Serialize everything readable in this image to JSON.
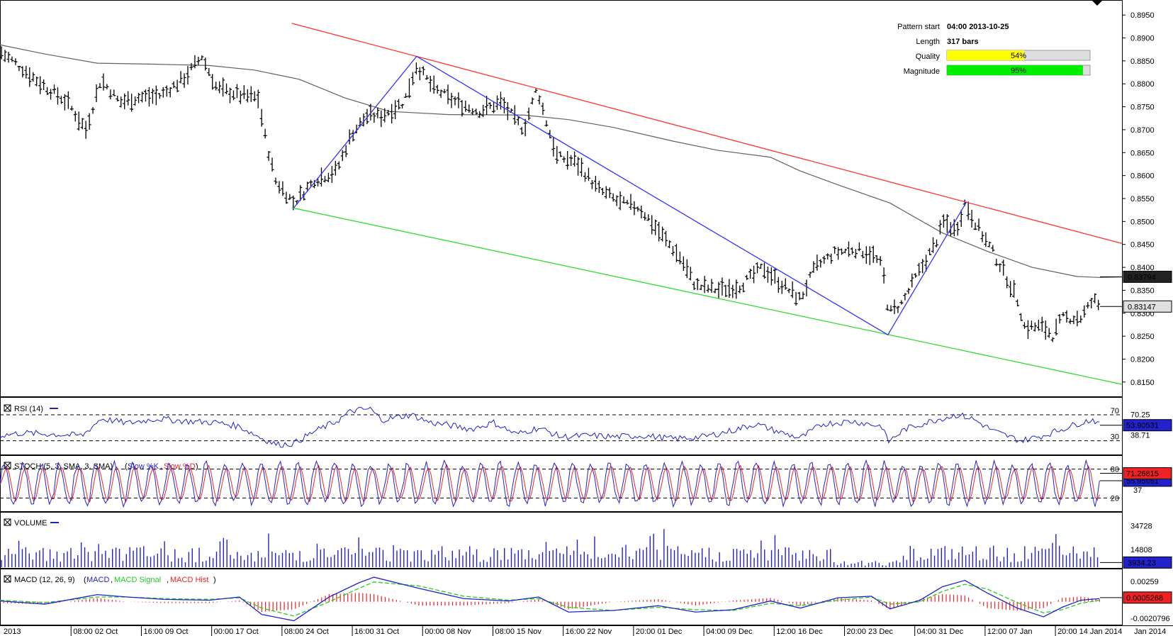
{
  "info_box": {
    "pattern_start_label": "Pattern start",
    "pattern_start_value": "04:00 2013-10-25",
    "length_label": "Length",
    "length_value": "317 bars",
    "quality_label": "Quality",
    "quality_value": "54%",
    "quality_level": 0.54,
    "magnitude_label": "Magnitude",
    "magnitude_value": "95%",
    "magnitude_level": 0.95
  },
  "colors": {
    "resistance": "#ff3333",
    "support": "#33dd33",
    "pattern": "#3333ff",
    "moving_average": "#606060",
    "quality_bar": "#ffff00",
    "magnitude_bar": "#00ee00",
    "rsi": "#2222cc",
    "stoch_k": "#2222cc",
    "stoch_d": "#ee2222",
    "volume": "#2222cc",
    "macd": "#2222cc",
    "macd_signal": "#22cc22",
    "macd_hist": "#ee2222",
    "last_price_bg": "#333333",
    "ma_price_bg": "#222222"
  },
  "chart_data": [
    {
      "type": "ohlc",
      "ylim": [
        0.8125,
        0.8975
      ],
      "y_ticks": [
        "0.8950",
        "0.8900",
        "0.8850",
        "0.8800",
        "0.8750",
        "0.8700",
        "0.8650",
        "0.8600",
        "0.8550",
        "0.8500",
        "0.8450",
        "0.8400",
        "0.8350",
        "0.8300",
        "0.8250",
        "0.8200",
        "0.8150"
      ],
      "x_ticks": [
        "2013",
        "08:00 02 Oct",
        "16:00 09 Oct",
        "00:00 17 Oct",
        "08:00 24 Oct",
        "16:00 31 Oct",
        "00:00 08 Nov",
        "08:00 15 Nov",
        "16:00 22 Nov",
        "20:00 01 Dec",
        "04:00 09 Dec",
        "12:00 16 Dec",
        "20:00 23 Dec",
        "04:00 31 Dec",
        "12:00 07 Jan",
        "20:00 14 Jan 2014",
        "Jan 2014"
      ],
      "price_path": [
        [
          0,
          0.887
        ],
        [
          25,
          0.884
        ],
        [
          55,
          0.88
        ],
        [
          90,
          0.876
        ],
        [
          115,
          0.87
        ],
        [
          135,
          0.881
        ],
        [
          160,
          0.876
        ],
        [
          185,
          0.877
        ],
        [
          215,
          0.8775
        ],
        [
          245,
          0.881
        ],
        [
          270,
          0.886
        ],
        [
          290,
          0.879
        ],
        [
          320,
          0.8775
        ],
        [
          345,
          0.877
        ],
        [
          355,
          0.868
        ],
        [
          368,
          0.859
        ],
        [
          393,
          0.854
        ],
        [
          420,
          0.859
        ],
        [
          450,
          0.861
        ],
        [
          470,
          0.869
        ],
        [
          490,
          0.873
        ],
        [
          510,
          0.873
        ],
        [
          540,
          0.876
        ],
        [
          557,
          0.884
        ],
        [
          580,
          0.879
        ],
        [
          610,
          0.876
        ],
        [
          640,
          0.874
        ],
        [
          670,
          0.876
        ],
        [
          700,
          0.87
        ],
        [
          718,
          0.879
        ],
        [
          730,
          0.872
        ],
        [
          745,
          0.864
        ],
        [
          770,
          0.863
        ],
        [
          800,
          0.857
        ],
        [
          830,
          0.854
        ],
        [
          855,
          0.853
        ],
        [
          880,
          0.848
        ],
        [
          910,
          0.842
        ],
        [
          930,
          0.836
        ],
        [
          960,
          0.835
        ],
        [
          990,
          0.836
        ],
        [
          1020,
          0.84
        ],
        [
          1040,
          0.837
        ],
        [
          1070,
          0.833
        ],
        [
          1090,
          0.84
        ],
        [
          1115,
          0.843
        ],
        [
          1140,
          0.844
        ],
        [
          1165,
          0.843
        ],
        [
          1180,
          0.84
        ],
        [
          1188,
          0.83
        ],
        [
          1205,
          0.832
        ],
        [
          1225,
          0.838
        ],
        [
          1250,
          0.845
        ],
        [
          1262,
          0.85
        ],
        [
          1278,
          0.848
        ],
        [
          1290,
          0.854
        ],
        [
          1310,
          0.848
        ],
        [
          1325,
          0.844
        ],
        [
          1345,
          0.838
        ],
        [
          1360,
          0.833
        ],
        [
          1370,
          0.827
        ],
        [
          1395,
          0.827
        ],
        [
          1408,
          0.825
        ],
        [
          1420,
          0.829
        ],
        [
          1445,
          0.829
        ],
        [
          1462,
          0.833
        ],
        [
          1470,
          0.8315
        ]
      ],
      "moving_average": [
        [
          0,
          0.8885
        ],
        [
          60,
          0.8865
        ],
        [
          130,
          0.8845
        ],
        [
          200,
          0.8843
        ],
        [
          280,
          0.884
        ],
        [
          340,
          0.883
        ],
        [
          400,
          0.881
        ],
        [
          460,
          0.877
        ],
        [
          520,
          0.874
        ],
        [
          600,
          0.8733
        ],
        [
          700,
          0.8732
        ],
        [
          760,
          0.8722
        ],
        [
          820,
          0.8705
        ],
        [
          900,
          0.8675
        ],
        [
          960,
          0.8655
        ],
        [
          1030,
          0.864
        ],
        [
          1070,
          0.861
        ],
        [
          1120,
          0.858
        ],
        [
          1190,
          0.854
        ],
        [
          1260,
          0.8475
        ],
        [
          1320,
          0.8435
        ],
        [
          1380,
          0.84
        ],
        [
          1440,
          0.838
        ],
        [
          1470,
          0.8378
        ],
        [
          1500,
          0.8379
        ]
      ],
      "resistance_line": [
        [
          390,
          0.8932
        ],
        [
          1500,
          0.8452
        ]
      ],
      "support_line": [
        [
          390,
          0.853
        ],
        [
          1500,
          0.8145
        ]
      ],
      "pattern_lines": [
        [
          393,
          0.853
        ],
        [
          557,
          0.886
        ],
        [
          1187,
          0.8253
        ],
        [
          1292,
          0.8542
        ]
      ],
      "last_price_label": "0.83147",
      "last_price": 0.83147,
      "ma_price_label": "0.83794",
      "ma_price": 0.83794
    },
    {
      "type": "line",
      "title": "RSI (14)",
      "ylim": [
        10,
        95
      ],
      "levels": [
        70,
        30
      ],
      "level_labels": [
        "70",
        "30"
      ],
      "extra_ticks": [
        "70.25",
        "38.71"
      ],
      "extra_tick_values": [
        70.25,
        38.71
      ],
      "last_value": 53.90531,
      "last_label": "53.90531",
      "path": [
        [
          0,
          38
        ],
        [
          30,
          42
        ],
        [
          70,
          40
        ],
        [
          110,
          38
        ],
        [
          135,
          64
        ],
        [
          170,
          57
        ],
        [
          210,
          64
        ],
        [
          250,
          60
        ],
        [
          290,
          58
        ],
        [
          320,
          52
        ],
        [
          350,
          34
        ],
        [
          370,
          24
        ],
        [
          393,
          26
        ],
        [
          420,
          44
        ],
        [
          450,
          60
        ],
        [
          470,
          76
        ],
        [
          495,
          79
        ],
        [
          510,
          62
        ],
        [
          550,
          70
        ],
        [
          575,
          58
        ],
        [
          600,
          54
        ],
        [
          630,
          48
        ],
        [
          660,
          58
        ],
        [
          690,
          40
        ],
        [
          720,
          50
        ],
        [
          750,
          36
        ],
        [
          790,
          38
        ],
        [
          820,
          36
        ],
        [
          860,
          38
        ],
        [
          900,
          33
        ],
        [
          940,
          36
        ],
        [
          980,
          46
        ],
        [
          1010,
          56
        ],
        [
          1040,
          44
        ],
        [
          1070,
          34
        ],
        [
          1100,
          56
        ],
        [
          1140,
          60
        ],
        [
          1180,
          52
        ],
        [
          1187,
          28
        ],
        [
          1210,
          48
        ],
        [
          1250,
          62
        ],
        [
          1280,
          70
        ],
        [
          1300,
          64
        ],
        [
          1330,
          44
        ],
        [
          1365,
          30
        ],
        [
          1395,
          38
        ],
        [
          1420,
          48
        ],
        [
          1445,
          58
        ],
        [
          1462,
          63
        ],
        [
          1470,
          54
        ]
      ]
    },
    {
      "type": "line",
      "title": "STOCH (5, 3, SMA, 3, SMA)",
      "series_names": [
        "Slow %K",
        "Slow %D"
      ],
      "ylim": [
        0,
        100
      ],
      "levels": [
        80,
        20
      ],
      "level_labels": [
        "80",
        "20"
      ],
      "extra_ticks": [
        "37"
      ],
      "extra_tick_values": [
        37
      ],
      "last_k": 71.26815,
      "last_k_label": "71.26815",
      "last_d": 55.95961,
      "last_d_label": "55.95961",
      "oscillations": 60
    },
    {
      "type": "bar",
      "title": "VOLUME",
      "ylim": [
        0,
        45000
      ],
      "y_ticks": [
        "34728",
        "14808"
      ],
      "y_tick_values": [
        34728,
        14808
      ],
      "last_value": 3934.23,
      "last_label": "3934.23",
      "bar_count": 317
    },
    {
      "type": "line",
      "title": "MACD (12, 26, 9)",
      "series_names": [
        "MACD",
        "MACD Signal",
        "MACD Hist"
      ],
      "ylim": [
        -0.0028,
        0.004
      ],
      "y_ticks": [
        "0.00259",
        "-0.0020796"
      ],
      "y_tick_values": [
        0.00259,
        -0.0020796
      ],
      "last_label": "0.0005268",
      "last_value": 0.0005268,
      "macd_path": [
        [
          0,
          0.0001
        ],
        [
          60,
          -0.0003
        ],
        [
          130,
          0.0009
        ],
        [
          170,
          0.0006
        ],
        [
          220,
          0.0003
        ],
        [
          280,
          0.0002
        ],
        [
          320,
          0.0006
        ],
        [
          350,
          -0.0016
        ],
        [
          393,
          -0.0024
        ],
        [
          440,
          0.0006
        ],
        [
          480,
          0.0024
        ],
        [
          500,
          0.0031
        ],
        [
          560,
          0.0017
        ],
        [
          620,
          0.0004
        ],
        [
          680,
          0.0001
        ],
        [
          720,
          0.0006
        ],
        [
          760,
          -0.0013
        ],
        [
          820,
          -0.0011
        ],
        [
          880,
          -0.0005
        ],
        [
          930,
          -0.0013
        ],
        [
          980,
          -0.001
        ],
        [
          1030,
          0.0001
        ],
        [
          1070,
          -0.0008
        ],
        [
          1120,
          0.0005
        ],
        [
          1165,
          0.0007
        ],
        [
          1190,
          -0.0009
        ],
        [
          1230,
          0.0002
        ],
        [
          1260,
          0.0019
        ],
        [
          1290,
          0.0027
        ],
        [
          1320,
          0.0011
        ],
        [
          1360,
          -0.0008
        ],
        [
          1395,
          -0.0019
        ],
        [
          1420,
          -0.0007
        ],
        [
          1445,
          0.0002
        ],
        [
          1470,
          0.0004
        ]
      ],
      "signal_path": [
        [
          0,
          0.0002
        ],
        [
          60,
          -0.0001
        ],
        [
          130,
          0.0006
        ],
        [
          170,
          0.0006
        ],
        [
          220,
          0.0004
        ],
        [
          280,
          0.0003
        ],
        [
          320,
          0.0005
        ],
        [
          350,
          -0.0008
        ],
        [
          393,
          -0.0018
        ],
        [
          440,
          0.0
        ],
        [
          480,
          0.0017
        ],
        [
          500,
          0.0025
        ],
        [
          560,
          0.002
        ],
        [
          620,
          0.0007
        ],
        [
          680,
          0.0002
        ],
        [
          720,
          0.0004
        ],
        [
          760,
          -0.0007
        ],
        [
          820,
          -0.0011
        ],
        [
          880,
          -0.0007
        ],
        [
          930,
          -0.001
        ],
        [
          980,
          -0.0011
        ],
        [
          1030,
          -0.0002
        ],
        [
          1070,
          -0.0005
        ],
        [
          1120,
          0.0002
        ],
        [
          1165,
          0.0006
        ],
        [
          1190,
          -0.0003
        ],
        [
          1230,
          0.0
        ],
        [
          1260,
          0.0013
        ],
        [
          1290,
          0.0022
        ],
        [
          1320,
          0.0016
        ],
        [
          1360,
          -0.0001
        ],
        [
          1395,
          -0.0014
        ],
        [
          1420,
          -0.001
        ],
        [
          1445,
          -0.0002
        ],
        [
          1470,
          0.0002
        ]
      ]
    }
  ]
}
